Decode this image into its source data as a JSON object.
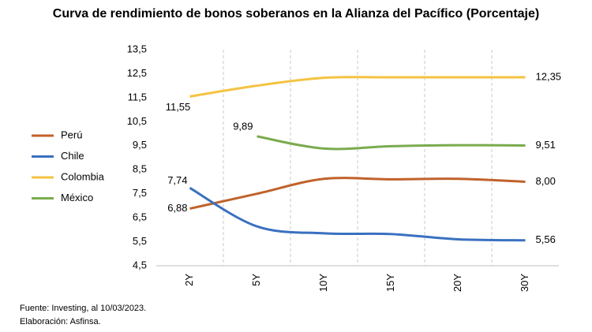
{
  "chart_data": {
    "type": "line",
    "title": "Curva de rendimiento de bonos soberanos en la Alianza del Pacífico (Porcentaje)",
    "categories": [
      "2Y",
      "5Y",
      "10Y",
      "15Y",
      "20Y",
      "30Y"
    ],
    "series": [
      {
        "name": "Perú",
        "color": "#c0622b",
        "values": [
          6.88,
          7.5,
          8.12,
          8.1,
          8.12,
          8.0
        ],
        "value_labels": [
          "6,88",
          null,
          null,
          null,
          null,
          "8,00"
        ]
      },
      {
        "name": "Chile",
        "color": "#3a70c0",
        "values": [
          7.74,
          6.14,
          5.85,
          5.82,
          5.6,
          5.56
        ],
        "value_labels": [
          "7,74",
          null,
          null,
          null,
          null,
          "5,56"
        ]
      },
      {
        "name": "Colombia",
        "color": "#f5c342",
        "values": [
          11.55,
          12.0,
          12.33,
          12.35,
          12.35,
          12.35
        ],
        "value_labels": [
          "11,55",
          null,
          null,
          null,
          null,
          "12,35"
        ]
      },
      {
        "name": "México",
        "color": "#7aab4e",
        "values": [
          null,
          9.89,
          9.38,
          9.48,
          9.52,
          9.51
        ],
        "value_labels": [
          null,
          "9,89",
          null,
          null,
          null,
          "9,51"
        ]
      }
    ],
    "ylim": [
      4.5,
      13.5
    ],
    "yticks": [
      {
        "value": 4.5,
        "label": "4,5"
      },
      {
        "value": 5.5,
        "label": "5,5"
      },
      {
        "value": 6.5,
        "label": "6,5"
      },
      {
        "value": 7.5,
        "label": "7,5"
      },
      {
        "value": 8.5,
        "label": "8,5"
      },
      {
        "value": 9.5,
        "label": "9,5"
      },
      {
        "value": 10.5,
        "label": "10,5"
      },
      {
        "value": 11.5,
        "label": "11,5"
      },
      {
        "value": 12.5,
        "label": "12,5"
      },
      {
        "value": 13.5,
        "label": "13,5"
      }
    ],
    "notes": [
      "Fuente: Investing, al 10/03/2023.",
      "Elaboración: Asfinsa."
    ]
  }
}
